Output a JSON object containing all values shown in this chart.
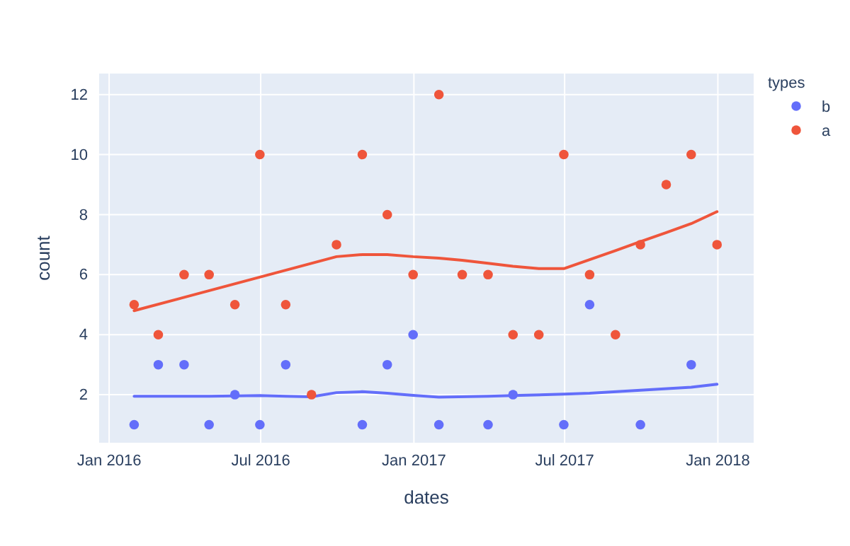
{
  "chart_data": {
    "type": "scatter",
    "xlabel": "dates",
    "ylabel": "count",
    "legend_title": "types",
    "legend": "top right",
    "grid": true,
    "marker": "circle",
    "xlim": [
      "2015-12-20",
      "2018-02-13"
    ],
    "xticks": [
      {
        "value": "2016-01-01",
        "label": "Jan 2016"
      },
      {
        "value": "2016-07-01",
        "label": "Jul 2016"
      },
      {
        "value": "2017-01-01",
        "label": "Jan 2017"
      },
      {
        "value": "2017-07-01",
        "label": "Jul 2017"
      },
      {
        "value": "2018-01-01",
        "label": "Jan 2018"
      }
    ],
    "ylim": [
      0.4,
      12.7
    ],
    "yticks": [
      2,
      4,
      6,
      8,
      10,
      12
    ],
    "series": [
      {
        "name": "b",
        "color": "#636efa",
        "x": [
          "2016-01-31",
          "2016-02-29",
          "2016-03-31",
          "2016-04-30",
          "2016-05-31",
          "2016-06-30",
          "2016-07-31",
          "2016-10-31",
          "2016-11-30",
          "2016-12-31",
          "2017-01-31",
          "2017-03-31",
          "2017-04-30",
          "2017-06-30",
          "2017-07-31",
          "2017-09-30",
          "2017-11-30"
        ],
        "values": [
          1,
          3,
          3,
          1,
          2,
          1,
          3,
          1,
          3,
          4,
          1,
          1,
          2,
          1,
          5,
          1,
          3
        ]
      },
      {
        "name": "a",
        "color": "#ef553b",
        "x": [
          "2016-01-31",
          "2016-02-29",
          "2016-03-31",
          "2016-04-30",
          "2016-05-31",
          "2016-06-30",
          "2016-07-31",
          "2016-08-31",
          "2016-09-30",
          "2016-10-31",
          "2016-11-30",
          "2016-12-31",
          "2017-01-31",
          "2017-02-28",
          "2017-03-31",
          "2017-04-30",
          "2017-05-31",
          "2017-06-30",
          "2017-07-31",
          "2017-08-31",
          "2017-09-30",
          "2017-10-31",
          "2017-11-30",
          "2017-12-31"
        ],
        "values": [
          5,
          4,
          6,
          6,
          5,
          10,
          5,
          2,
          7,
          10,
          8,
          6,
          12,
          6,
          6,
          4,
          4,
          10,
          6,
          4,
          7,
          9,
          10,
          7
        ]
      },
      {
        "type": "line",
        "marker": "none",
        "color": "#636efa",
        "x": [
          "2016-01-31",
          "2016-04-30",
          "2016-06-30",
          "2016-07-31",
          "2016-08-31",
          "2016-09-30",
          "2016-10-31",
          "2016-11-30",
          "2016-12-31",
          "2017-01-31",
          "2017-03-31",
          "2017-04-30",
          "2017-06-30",
          "2017-07-31",
          "2017-09-30",
          "2017-11-30",
          "2017-12-31"
        ],
        "values": [
          1.95,
          1.95,
          1.97,
          1.95,
          1.93,
          2.07,
          2.1,
          2.05,
          1.98,
          1.92,
          1.95,
          1.97,
          2.02,
          2.05,
          2.15,
          2.25,
          2.35
        ]
      },
      {
        "type": "line",
        "marker": "none",
        "color": "#ef553b",
        "x": [
          "2016-01-31",
          "2016-09-30",
          "2016-10-31",
          "2016-11-30",
          "2016-12-31",
          "2017-01-31",
          "2017-02-28",
          "2017-03-31",
          "2017-04-30",
          "2017-05-31",
          "2017-06-30",
          "2017-07-31",
          "2017-08-31",
          "2017-09-30",
          "2017-10-31",
          "2017-11-30",
          "2017-12-31"
        ],
        "values": [
          4.8,
          6.6,
          6.67,
          6.67,
          6.6,
          6.55,
          6.48,
          6.38,
          6.28,
          6.2,
          6.2,
          6.5,
          6.8,
          7.1,
          7.4,
          7.7,
          8.1
        ]
      }
    ]
  }
}
